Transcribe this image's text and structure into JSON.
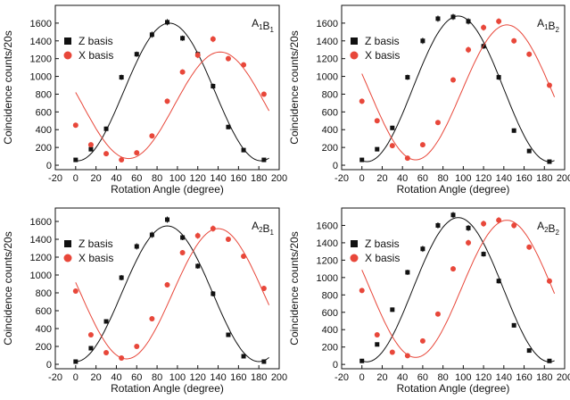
{
  "chart_data": [
    {
      "type": "scatter",
      "title": "A1B1",
      "panel_label": {
        "main": "A",
        "sub1": "1",
        "mid": "B",
        "sub2": "1"
      },
      "xlabel": "Rotation Angle (degree)",
      "ylabel": "Coincidence counts/20s",
      "xlim": [
        -20,
        200
      ],
      "ylim": [
        -50,
        1800
      ],
      "xticks": [
        -20,
        0,
        20,
        40,
        60,
        80,
        100,
        120,
        140,
        160,
        180,
        200
      ],
      "yticks": [
        0,
        200,
        400,
        600,
        800,
        1000,
        1200,
        1400,
        1600
      ],
      "legend_position": "top-left",
      "series": [
        {
          "name": "Z basis",
          "color": "#111111",
          "marker": "square",
          "x": [
            0,
            15,
            30,
            45,
            60,
            75,
            90,
            105,
            120,
            135,
            150,
            165,
            185
          ],
          "y": [
            60,
            180,
            410,
            990,
            1250,
            1470,
            1610,
            1430,
            1250,
            890,
            430,
            170,
            60
          ],
          "err": [
            15,
            20,
            25,
            30,
            30,
            35,
            35,
            30,
            30,
            30,
            25,
            20,
            15
          ],
          "fit": {
            "mean": 825,
            "amp": 775,
            "phase_deg": 92
          }
        },
        {
          "name": "X basis",
          "color": "#e8473a",
          "marker": "circle",
          "x": [
            0,
            15,
            30,
            45,
            60,
            75,
            90,
            105,
            120,
            135,
            150,
            165,
            185
          ],
          "y": [
            450,
            230,
            130,
            60,
            140,
            330,
            720,
            1050,
            1240,
            1420,
            1200,
            1130,
            800
          ],
          "err": [
            25,
            20,
            15,
            15,
            15,
            25,
            30,
            30,
            35,
            35,
            30,
            30,
            30
          ],
          "fit": {
            "mean": 675,
            "amp": 600,
            "phase_deg": 142
          }
        }
      ]
    },
    {
      "type": "scatter",
      "title": "A1B2",
      "panel_label": {
        "main": "A",
        "sub1": "1",
        "mid": "B",
        "sub2": "2"
      },
      "xlabel": "Rotation Angle (degree)",
      "ylabel": "Coincidence counts/20s",
      "xlim": [
        -20,
        200
      ],
      "ylim": [
        -50,
        1800
      ],
      "xticks": [
        -20,
        0,
        20,
        40,
        60,
        80,
        100,
        120,
        140,
        160,
        180,
        200
      ],
      "yticks": [
        0,
        200,
        400,
        600,
        800,
        1000,
        1200,
        1400,
        1600
      ],
      "legend_position": "top-left",
      "series": [
        {
          "name": "Z basis",
          "color": "#111111",
          "marker": "square",
          "x": [
            0,
            15,
            30,
            45,
            60,
            75,
            90,
            105,
            120,
            135,
            150,
            165,
            185
          ],
          "y": [
            60,
            180,
            420,
            990,
            1400,
            1650,
            1670,
            1620,
            1340,
            990,
            390,
            160,
            40
          ],
          "err": [
            15,
            20,
            25,
            30,
            35,
            35,
            35,
            35,
            30,
            30,
            25,
            20,
            15
          ],
          "fit": {
            "mean": 860,
            "amp": 820,
            "phase_deg": 95
          }
        },
        {
          "name": "X basis",
          "color": "#e8473a",
          "marker": "circle",
          "x": [
            0,
            15,
            30,
            45,
            60,
            75,
            90,
            105,
            120,
            135,
            150,
            165,
            185
          ],
          "y": [
            720,
            500,
            220,
            80,
            230,
            480,
            960,
            1300,
            1550,
            1620,
            1400,
            1250,
            900
          ],
          "err": [
            30,
            25,
            20,
            15,
            20,
            25,
            30,
            35,
            35,
            35,
            30,
            30,
            30
          ],
          "fit": {
            "mean": 820,
            "amp": 760,
            "phase_deg": 143
          }
        }
      ]
    },
    {
      "type": "scatter",
      "title": "A2B1",
      "panel_label": {
        "main": "A",
        "sub1": "2",
        "mid": "B",
        "sub2": "1"
      },
      "xlabel": "Rotation Angle (degree)",
      "ylabel": "Coincidence counts/20s",
      "xlim": [
        -20,
        200
      ],
      "ylim": [
        -50,
        1750
      ],
      "xticks": [
        -20,
        0,
        20,
        40,
        60,
        80,
        100,
        120,
        140,
        160,
        180,
        200
      ],
      "yticks": [
        0,
        200,
        400,
        600,
        800,
        1000,
        1200,
        1400,
        1600
      ],
      "legend_position": "top-left",
      "series": [
        {
          "name": "Z basis",
          "color": "#111111",
          "marker": "square",
          "x": [
            0,
            15,
            30,
            45,
            60,
            75,
            90,
            105,
            120,
            135,
            150,
            165,
            185
          ],
          "y": [
            30,
            180,
            480,
            970,
            1320,
            1450,
            1620,
            1420,
            1100,
            790,
            330,
            90,
            30
          ],
          "err": [
            15,
            20,
            25,
            30,
            35,
            35,
            35,
            30,
            30,
            30,
            25,
            15,
            15
          ],
          "fit": {
            "mean": 790,
            "amp": 760,
            "phase_deg": 90
          }
        },
        {
          "name": "X basis",
          "color": "#e8473a",
          "marker": "circle",
          "x": [
            0,
            15,
            30,
            45,
            60,
            75,
            90,
            105,
            120,
            135,
            150,
            165,
            185
          ],
          "y": [
            820,
            330,
            130,
            70,
            200,
            510,
            890,
            1250,
            1440,
            1520,
            1400,
            1210,
            850
          ],
          "err": [
            25,
            20,
            15,
            15,
            20,
            25,
            30,
            30,
            35,
            35,
            30,
            30,
            30
          ],
          "fit": {
            "mean": 790,
            "amp": 730,
            "phase_deg": 140
          }
        }
      ]
    },
    {
      "type": "scatter",
      "title": "A2B2",
      "panel_label": {
        "main": "A",
        "sub1": "2",
        "mid": "B",
        "sub2": "2"
      },
      "xlabel": "Rotation Angle (degree)",
      "ylabel": "Coincidence counts/20s",
      "xlim": [
        -20,
        200
      ],
      "ylim": [
        -50,
        1800
      ],
      "xticks": [
        -20,
        0,
        20,
        40,
        60,
        80,
        100,
        120,
        140,
        160,
        180,
        200
      ],
      "yticks": [
        0,
        200,
        400,
        600,
        800,
        1000,
        1200,
        1400,
        1600
      ],
      "legend_position": "top-left",
      "series": [
        {
          "name": "Z basis",
          "color": "#111111",
          "marker": "square",
          "x": [
            0,
            15,
            30,
            45,
            60,
            75,
            90,
            105,
            120,
            135,
            150,
            165,
            185
          ],
          "y": [
            40,
            230,
            630,
            1060,
            1330,
            1600,
            1720,
            1570,
            1270,
            960,
            450,
            160,
            40
          ],
          "err": [
            15,
            20,
            25,
            30,
            35,
            35,
            35,
            35,
            30,
            30,
            25,
            20,
            15
          ],
          "fit": {
            "mean": 860,
            "amp": 830,
            "phase_deg": 95
          }
        },
        {
          "name": "X basis",
          "color": "#e8473a",
          "marker": "circle",
          "x": [
            0,
            15,
            30,
            45,
            60,
            75,
            90,
            105,
            120,
            135,
            150,
            165,
            185
          ],
          "y": [
            850,
            340,
            140,
            100,
            270,
            580,
            1100,
            1400,
            1620,
            1660,
            1600,
            1350,
            960
          ],
          "err": [
            25,
            20,
            15,
            15,
            20,
            25,
            30,
            35,
            35,
            35,
            35,
            30,
            30
          ],
          "fit": {
            "mean": 870,
            "amp": 790,
            "phase_deg": 143
          }
        }
      ]
    }
  ]
}
